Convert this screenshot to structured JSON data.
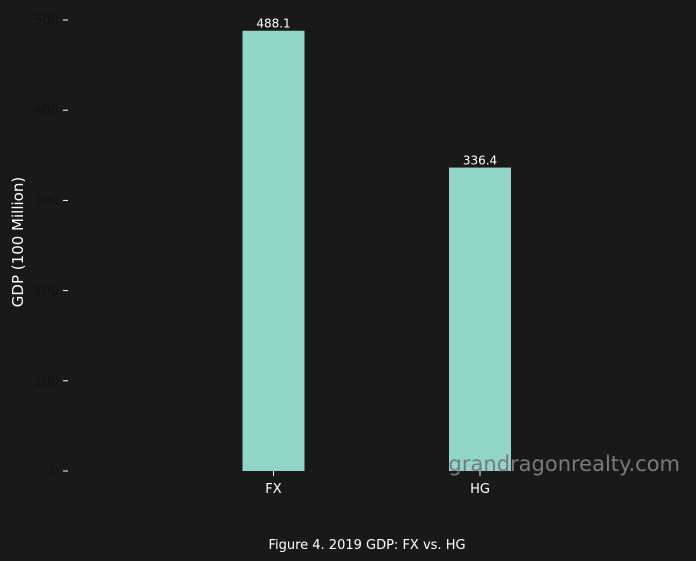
{
  "chart_data": {
    "type": "bar",
    "categories": [
      "FX",
      "HG"
    ],
    "values": [
      488.1,
      336.4
    ],
    "value_labels": [
      "488.1",
      "336.4"
    ],
    "ylabel": "GDP (100 Million)",
    "ylim": [
      0,
      500
    ],
    "yticks": [
      0,
      100,
      200,
      300,
      400,
      500
    ],
    "grid": false,
    "bar_color": "#91d5c9",
    "caption": "Figure 4. 2019 GDP: FX vs. HG"
  },
  "watermark": "grandragonrealty.com",
  "colors": {
    "background": "#191919",
    "tick_label": "#111111",
    "text": "#ffffff"
  }
}
